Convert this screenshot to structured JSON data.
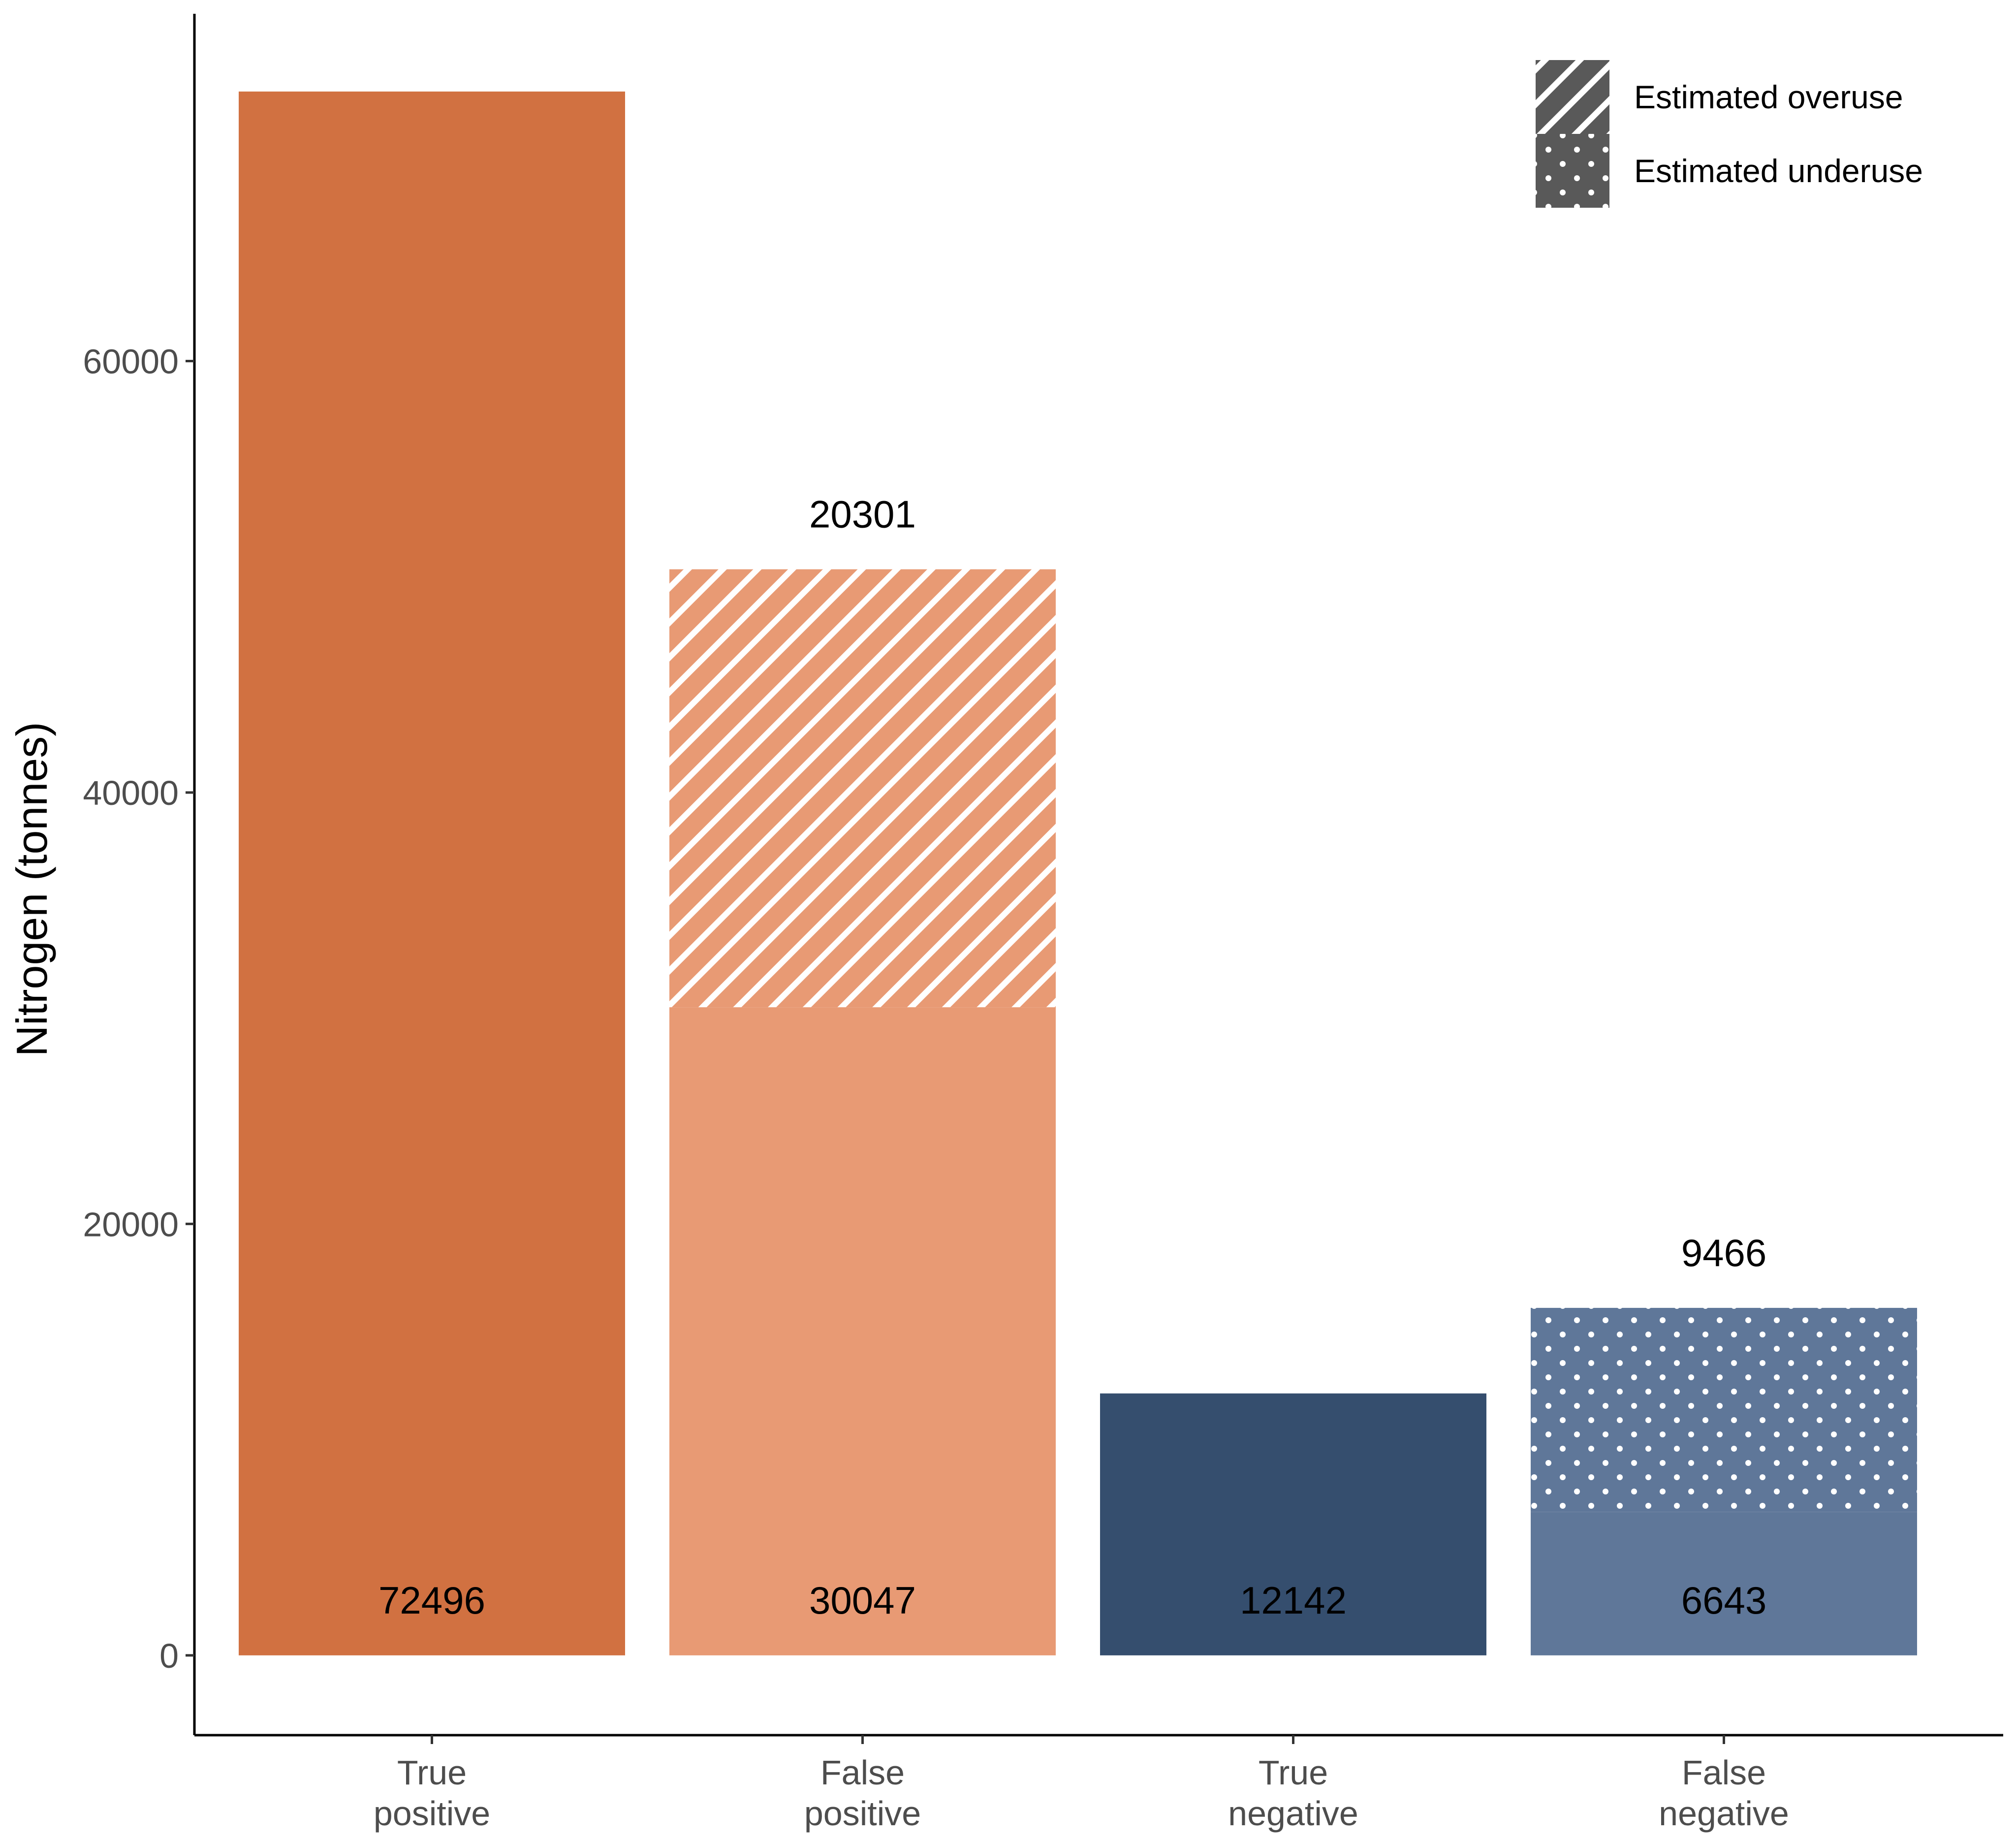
{
  "chart_data": {
    "type": "bar",
    "stacked": true,
    "title": "",
    "xlabel": "",
    "ylabel": "Nitrogen (tonnes)",
    "ylim": [
      -3700,
      76100
    ],
    "yticks": [
      0,
      20000,
      40000,
      60000
    ],
    "grid": false,
    "legend_position": "top-right",
    "categories": [
      {
        "line1": "True",
        "line2": "positive"
      },
      {
        "line1": "False",
        "line2": "positive"
      },
      {
        "line1": "True",
        "line2": "negative"
      },
      {
        "line1": "False",
        "line2": "negative"
      }
    ],
    "bars": [
      {
        "base": 72496,
        "base_label": "72496",
        "base_color": "#D17141",
        "extra": null,
        "extra_label": null,
        "extra_pattern": null,
        "extra_color": null
      },
      {
        "base": 30047,
        "base_label": "30047",
        "base_color": "#E89A74",
        "extra": 20301,
        "extra_label": "20301",
        "extra_pattern": "stripes",
        "extra_color": "#E89A74"
      },
      {
        "base": 12142,
        "base_label": "12142",
        "base_color": "#354E6E",
        "extra": null,
        "extra_label": null,
        "extra_pattern": null,
        "extra_color": null
      },
      {
        "base": 6643,
        "base_label": "6643",
        "base_color": "#5F7799",
        "extra": 9466,
        "extra_label": "9466",
        "extra_pattern": "dots",
        "extra_color": "#5F7799"
      }
    ],
    "legend": [
      {
        "label": "Estimated overuse",
        "pattern": "stripes",
        "color": "#595959"
      },
      {
        "label": "Estimated underuse",
        "pattern": "dots",
        "color": "#595959"
      }
    ]
  }
}
